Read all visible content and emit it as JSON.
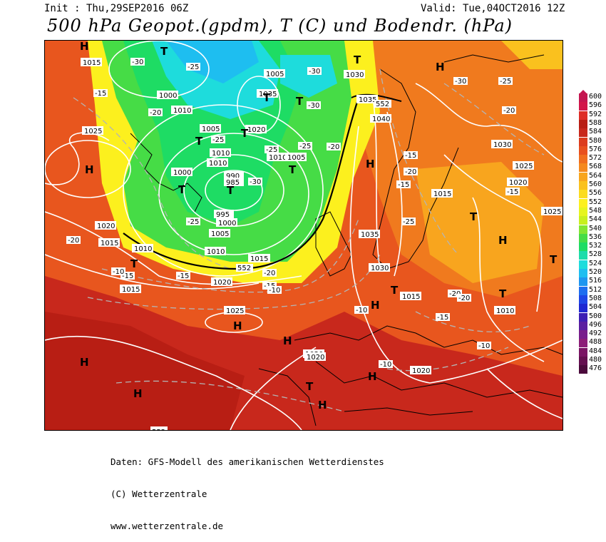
{
  "header": {
    "init": "Init : Thu,29SEP2016 06Z",
    "valid": "Valid: Tue,04OCT2016 12Z",
    "title": "500 hPa Geopot.(gpdm), T (C) und Bodendr. (hPa)"
  },
  "legend": {
    "values": [
      "600",
      "596",
      "592",
      "588",
      "584",
      "580",
      "576",
      "572",
      "568",
      "564",
      "560",
      "556",
      "552",
      "548",
      "544",
      "540",
      "536",
      "532",
      "528",
      "524",
      "520",
      "516",
      "512",
      "508",
      "504",
      "500",
      "496",
      "492",
      "488",
      "484",
      "480",
      "476"
    ],
    "colors": [
      "#c41650",
      "#d2164a",
      "#de2d26",
      "#b81e14",
      "#c8281c",
      "#dc3c1e",
      "#e8501e",
      "#f06e1e",
      "#f5891e",
      "#f8a51e",
      "#fac11e",
      "#fbdc1e",
      "#fcf01e",
      "#e6f51e",
      "#c8f01e",
      "#82e632",
      "#46dc46",
      "#1edc64",
      "#1edcaa",
      "#1edcdc",
      "#1ebef0",
      "#1e96f0",
      "#1e6ef0",
      "#1e46e6",
      "#1e28d2",
      "#3c1eb4",
      "#5a1ea0",
      "#781e8c",
      "#8c1e78",
      "#7a1464",
      "#640f50",
      "#4b0a3c"
    ]
  },
  "map_labels": {
    "isobars": [
      "1015",
      "1000",
      "1005",
      "1010",
      "1005",
      "1015",
      "1010",
      "1000",
      "990",
      "985",
      "995",
      "1000",
      "1005",
      "1010",
      "1015",
      "1020",
      "1015",
      "1010",
      "1015",
      "1025",
      "1020",
      "1025",
      "1020",
      "1035",
      "1010",
      "1010",
      "1005",
      "1020",
      "1035",
      "1040",
      "1030",
      "1030",
      "1035",
      "1015",
      "1030",
      "1025",
      "1020",
      "1015",
      "1010",
      "1020",
      "1020",
      "1025",
      "1015"
    ],
    "temps": [
      "-30",
      "-25",
      "-30",
      "-20",
      "-15",
      "-30",
      "-25",
      "-25",
      "-20",
      "-30",
      "-25",
      "-20",
      "-15",
      "-15",
      "-10",
      "-15",
      "-10",
      "-20",
      "-25",
      "-15",
      "-20",
      "-30",
      "-25",
      "-20",
      "-15",
      "-10",
      "-15",
      "-10",
      "-10",
      "-20",
      "-25",
      "-20",
      "-15"
    ],
    "highs": [
      "H",
      "H",
      "H",
      "H",
      "H",
      "H",
      "H",
      "H",
      "H",
      "H",
      "H",
      "H"
    ],
    "lows": [
      "T",
      "T",
      "T",
      "T",
      "T",
      "T",
      "T",
      "T",
      "T",
      "T",
      "T",
      "T",
      "T",
      "T",
      "T"
    ],
    "geo_552": [
      "552",
      "552",
      "552"
    ]
  },
  "footer": {
    "line1": "Daten: GFS-Modell des amerikanischen Wetterdienstes",
    "line2": "(C) Wetterzentrale",
    "line3": "www.wetterzentrale.de"
  }
}
